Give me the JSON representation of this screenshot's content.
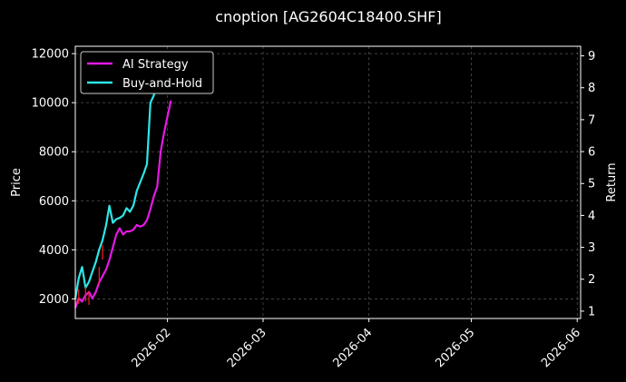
{
  "chart_data": {
    "type": "line",
    "title": "cnoption [AG2604C18400.SHF]",
    "ylabel": "Price",
    "y2label": "Return",
    "xlabel": "",
    "x_ticks": [
      "2026-02",
      "2026-03",
      "2026-04",
      "2026-05",
      "2026-06"
    ],
    "x_tick_dates": [
      "2026-02-01",
      "2026-03-01",
      "2026-04-01",
      "2026-05-01",
      "2026-06-01"
    ],
    "xlim": [
      "2026-01-05",
      "2026-06-02"
    ],
    "y_ticks": [
      2000,
      4000,
      6000,
      8000,
      10000,
      12000
    ],
    "ylim": [
      1200,
      12300
    ],
    "y2_ticks": [
      1,
      2,
      3,
      4,
      5,
      6,
      7,
      8,
      9
    ],
    "y2lim": [
      0.77,
      9.3
    ],
    "grid": true,
    "legend_position": "top-left",
    "series": [
      {
        "name": "AI Strategy",
        "color": "#e619e6",
        "axis": "return",
        "points": [
          [
            "2026-01-05",
            1.1
          ],
          [
            "2026-01-06",
            1.4
          ],
          [
            "2026-01-07",
            1.3
          ],
          [
            "2026-01-08",
            1.5
          ],
          [
            "2026-01-09",
            1.6
          ],
          [
            "2026-01-10",
            1.4
          ],
          [
            "2026-01-11",
            1.6
          ],
          [
            "2026-01-12",
            1.9
          ],
          [
            "2026-01-13",
            2.1
          ],
          [
            "2026-01-14",
            2.3
          ],
          [
            "2026-01-15",
            2.6
          ],
          [
            "2026-01-16",
            3.0
          ],
          [
            "2026-01-17",
            3.4
          ],
          [
            "2026-01-18",
            3.6
          ],
          [
            "2026-01-19",
            3.4
          ],
          [
            "2026-01-20",
            3.5
          ],
          [
            "2026-01-21",
            3.5
          ],
          [
            "2026-01-22",
            3.55
          ],
          [
            "2026-01-23",
            3.7
          ],
          [
            "2026-01-24",
            3.65
          ],
          [
            "2026-01-25",
            3.7
          ],
          [
            "2026-01-26",
            3.85
          ],
          [
            "2026-01-27",
            4.2
          ],
          [
            "2026-01-28",
            4.6
          ],
          [
            "2026-01-29",
            4.9
          ],
          [
            "2026-01-30",
            6.0
          ],
          [
            "2026-01-31",
            6.6
          ],
          [
            "2026-02-01",
            7.1
          ],
          [
            "2026-02-02",
            7.6
          ]
        ]
      },
      {
        "name": "Buy-and-Hold",
        "color": "#2ee6e6",
        "axis": "price",
        "points": [
          [
            "2026-01-05",
            2000
          ],
          [
            "2026-01-06",
            2850
          ],
          [
            "2026-01-07",
            3300
          ],
          [
            "2026-01-08",
            2450
          ],
          [
            "2026-01-09",
            2700
          ],
          [
            "2026-01-10",
            3100
          ],
          [
            "2026-01-11",
            3500
          ],
          [
            "2026-01-12",
            4000
          ],
          [
            "2026-01-13",
            4400
          ],
          [
            "2026-01-14",
            5000
          ],
          [
            "2026-01-15",
            5800
          ],
          [
            "2026-01-16",
            5100
          ],
          [
            "2026-01-17",
            5250
          ],
          [
            "2026-01-18",
            5300
          ],
          [
            "2026-01-19",
            5400
          ],
          [
            "2026-01-20",
            5700
          ],
          [
            "2026-01-21",
            5550
          ],
          [
            "2026-01-22",
            5800
          ],
          [
            "2026-01-23",
            6400
          ],
          [
            "2026-01-24",
            6750
          ],
          [
            "2026-01-25",
            7100
          ],
          [
            "2026-01-26",
            7500
          ],
          [
            "2026-01-27",
            10000
          ],
          [
            "2026-01-28",
            10300
          ],
          [
            "2026-01-29",
            11200
          ],
          [
            "2026-01-30",
            11700
          ]
        ]
      }
    ],
    "markers": {
      "color": "#ff2020",
      "description_free": true,
      "points": [
        [
          "2026-01-05",
          1650,
          2200
        ],
        [
          "2026-01-06",
          1800,
          2400
        ],
        [
          "2026-01-08",
          1900,
          2500
        ],
        [
          "2026-01-09",
          1750,
          2300
        ],
        [
          "2026-01-12",
          2550,
          3300
        ],
        [
          "2026-01-13",
          3600,
          4200
        ]
      ]
    }
  }
}
